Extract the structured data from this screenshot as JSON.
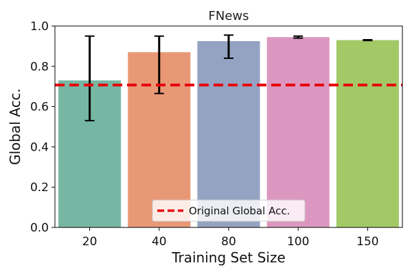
{
  "chart_data": {
    "type": "bar",
    "title": "FNews",
    "xlabel": "Training Set Size",
    "ylabel": "Global Acc.",
    "ylim": [
      0,
      1
    ],
    "yticks": [
      "0.0",
      "0.2",
      "0.4",
      "0.6",
      "0.8",
      "1.0"
    ],
    "categories": [
      "20",
      "40",
      "80",
      "100",
      "150"
    ],
    "values": [
      0.73,
      0.87,
      0.925,
      0.945,
      0.93
    ],
    "error_low": [
      0.53,
      0.665,
      0.84,
      0.94,
      0.928
    ],
    "error_high": [
      0.95,
      0.95,
      0.955,
      0.95,
      0.932
    ],
    "bar_colors": [
      "#76b7a3",
      "#e99875",
      "#94a3c2",
      "#dc97c0",
      "#a3c967"
    ],
    "reference_line": {
      "value": 0.707,
      "label": "Original Global Acc.",
      "color": "#e8000b",
      "style": "dashed"
    },
    "grid": false,
    "legend_position": "lower-center"
  }
}
